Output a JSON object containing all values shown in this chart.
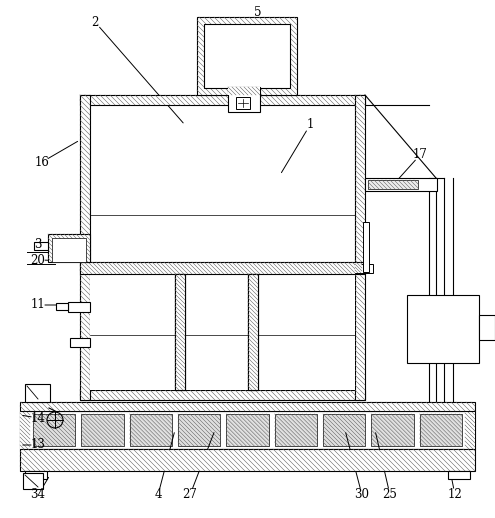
{
  "bg": "#ffffff",
  "lc": "#000000",
  "fig_w": 4.95,
  "fig_h": 5.18,
  "dpi": 100
}
